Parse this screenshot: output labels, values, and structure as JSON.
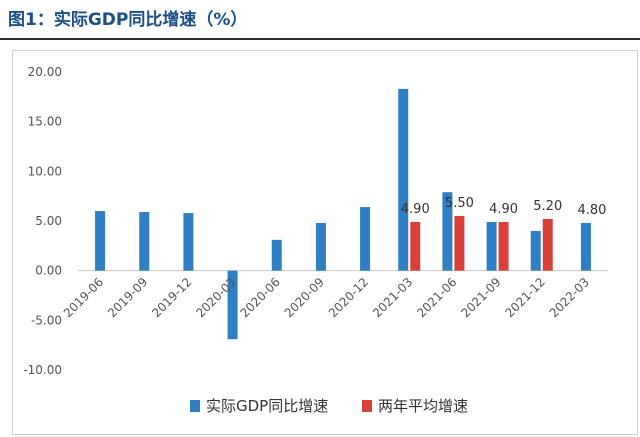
{
  "header": {
    "title": "图1：实际GDP同比增速（%）"
  },
  "chart_data": {
    "type": "bar",
    "title": "图1：实际GDP同比增速（%）",
    "categories": [
      "2019-06",
      "2019-09",
      "2019-12",
      "2020-03",
      "2020-06",
      "2020-09",
      "2020-12",
      "2021-03",
      "2021-06",
      "2021-09",
      "2021-12",
      "2022-03"
    ],
    "series": [
      {
        "name": "实际GDP同比增速",
        "color": "#2e7fc4",
        "values": [
          6.0,
          5.9,
          5.8,
          -6.9,
          3.1,
          4.8,
          6.4,
          18.3,
          7.9,
          4.9,
          4.0,
          4.8
        ]
      },
      {
        "name": "两年平均增速",
        "color": "#d9403a",
        "values": [
          null,
          null,
          null,
          null,
          null,
          null,
          null,
          4.9,
          5.5,
          4.9,
          5.2,
          null
        ]
      }
    ],
    "data_labels": [
      {
        "category": "2021-03",
        "text": "4.90"
      },
      {
        "category": "2021-06",
        "text": "5.50"
      },
      {
        "category": "2021-09",
        "text": "4.90"
      },
      {
        "category": "2021-12",
        "text": "5.20"
      },
      {
        "category": "2022-03",
        "text": "4.80"
      }
    ],
    "y_ticks": [
      "20.00",
      "15.00",
      "10.00",
      "5.00",
      "0.00",
      "-5.00",
      "-10.00"
    ],
    "ylim": [
      -10,
      20
    ],
    "grid": false,
    "legend_position": "bottom"
  }
}
